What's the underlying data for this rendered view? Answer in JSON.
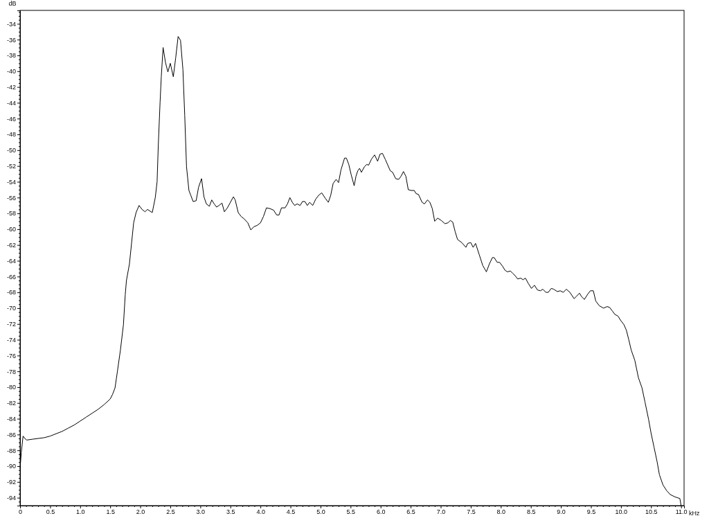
{
  "chart_data": {
    "type": "line",
    "xlabel": "kHz",
    "ylabel": "dB",
    "color": "#000000",
    "xlim": [
      0,
      11.05
    ],
    "ylim": [
      -95,
      -32.3
    ],
    "xticks": [
      0,
      {
        "value": 0.1,
        "label": null
      },
      {
        "value": 0.2,
        "label": null
      },
      {
        "value": 0.3,
        "label": null
      },
      {
        "value": 0.4,
        "label": null
      },
      0.5,
      {
        "value": 0.6,
        "label": null
      },
      {
        "value": 0.7,
        "label": null
      },
      {
        "value": 0.8,
        "label": null
      },
      {
        "value": 0.9,
        "label": null
      },
      {
        "value": 1,
        "label": "1.0"
      },
      {
        "value": 1.1,
        "label": null
      },
      {
        "value": 1.2,
        "label": null
      },
      {
        "value": 1.3,
        "label": null
      },
      {
        "value": 1.4,
        "label": null
      },
      1.5,
      {
        "value": 1.6,
        "label": null
      },
      {
        "value": 1.7,
        "label": null
      },
      {
        "value": 1.8,
        "label": null
      },
      {
        "value": 1.9,
        "label": null
      },
      {
        "value": 2,
        "label": "2.0"
      },
      {
        "value": 2.1,
        "label": null
      },
      {
        "value": 2.2,
        "label": null
      },
      {
        "value": 2.3,
        "label": null
      },
      {
        "value": 2.4,
        "label": null
      },
      2.5,
      {
        "value": 2.6,
        "label": null
      },
      {
        "value": 2.7,
        "label": null
      },
      {
        "value": 2.8,
        "label": null
      },
      {
        "value": 2.9,
        "label": null
      },
      {
        "value": 3,
        "label": "3.0"
      },
      {
        "value": 3.1,
        "label": null
      },
      {
        "value": 3.2,
        "label": null
      },
      {
        "value": 3.3,
        "label": null
      },
      {
        "value": 3.4,
        "label": null
      },
      3.5,
      {
        "value": 3.6,
        "label": null
      },
      {
        "value": 3.7,
        "label": null
      },
      {
        "value": 3.8,
        "label": null
      },
      {
        "value": 3.9,
        "label": null
      },
      {
        "value": 4,
        "label": "4.0"
      },
      {
        "value": 4.1,
        "label": null
      },
      {
        "value": 4.2,
        "label": null
      },
      {
        "value": 4.3,
        "label": null
      },
      {
        "value": 4.4,
        "label": null
      },
      4.5,
      {
        "value": 4.6,
        "label": null
      },
      {
        "value": 4.7,
        "label": null
      },
      {
        "value": 4.8,
        "label": null
      },
      {
        "value": 4.9,
        "label": null
      },
      {
        "value": 5,
        "label": "5.0"
      },
      {
        "value": 5.1,
        "label": null
      },
      {
        "value": 5.2,
        "label": null
      },
      {
        "value": 5.3,
        "label": null
      },
      {
        "value": 5.4,
        "label": null
      },
      5.5,
      {
        "value": 5.6,
        "label": null
      },
      {
        "value": 5.7,
        "label": null
      },
      {
        "value": 5.8,
        "label": null
      },
      {
        "value": 5.9,
        "label": null
      },
      {
        "value": 6,
        "label": "6.0"
      },
      {
        "value": 6.1,
        "label": null
      },
      {
        "value": 6.2,
        "label": null
      },
      {
        "value": 6.3,
        "label": null
      },
      {
        "value": 6.4,
        "label": null
      },
      6.5,
      {
        "value": 6.6,
        "label": null
      },
      {
        "value": 6.7,
        "label": null
      },
      {
        "value": 6.8,
        "label": null
      },
      {
        "value": 6.9,
        "label": null
      },
      {
        "value": 7,
        "label": "7.0"
      },
      {
        "value": 7.1,
        "label": null
      },
      {
        "value": 7.2,
        "label": null
      },
      {
        "value": 7.3,
        "label": null
      },
      {
        "value": 7.4,
        "label": null
      },
      7.5,
      {
        "value": 7.6,
        "label": null
      },
      {
        "value": 7.7,
        "label": null
      },
      {
        "value": 7.8,
        "label": null
      },
      {
        "value": 7.9,
        "label": null
      },
      {
        "value": 8,
        "label": "8.0"
      },
      {
        "value": 8.1,
        "label": null
      },
      {
        "value": 8.2,
        "label": null
      },
      {
        "value": 8.3,
        "label": null
      },
      {
        "value": 8.4,
        "label": null
      },
      8.5,
      {
        "value": 8.6,
        "label": null
      },
      {
        "value": 8.7,
        "label": null
      },
      {
        "value": 8.8,
        "label": null
      },
      {
        "value": 8.9,
        "label": null
      },
      {
        "value": 9,
        "label": "9.0"
      },
      {
        "value": 9.1,
        "label": null
      },
      {
        "value": 9.2,
        "label": null
      },
      {
        "value": 9.3,
        "label": null
      },
      {
        "value": 9.4,
        "label": null
      },
      9.5,
      {
        "value": 9.6,
        "label": null
      },
      {
        "value": 9.7,
        "label": null
      },
      {
        "value": 9.8,
        "label": null
      },
      {
        "value": 9.9,
        "label": null
      },
      {
        "value": 10,
        "label": "10.0"
      },
      {
        "value": 10.1,
        "label": null
      },
      {
        "value": 10.2,
        "label": null
      },
      {
        "value": 10.3,
        "label": null
      },
      {
        "value": 10.4,
        "label": null
      },
      10.5,
      {
        "value": 10.6,
        "label": null
      },
      {
        "value": 10.7,
        "label": null
      },
      {
        "value": 10.8,
        "label": null
      },
      {
        "value": 10.9,
        "label": null
      },
      {
        "value": 11,
        "label": "11.0"
      }
    ],
    "yticks": [
      {
        "value": -94.5,
        "label": null
      },
      -94,
      {
        "value": -93.5,
        "label": null
      },
      {
        "value": -93,
        "label": null
      },
      {
        "value": -92.5,
        "label": null
      },
      -92,
      {
        "value": -91.5,
        "label": null
      },
      {
        "value": -91,
        "label": null
      },
      {
        "value": -90.5,
        "label": null
      },
      -90,
      {
        "value": -89.5,
        "label": null
      },
      {
        "value": -89,
        "label": null
      },
      {
        "value": -88.5,
        "label": null
      },
      -88,
      {
        "value": -87.5,
        "label": null
      },
      {
        "value": -87,
        "label": null
      },
      {
        "value": -86.5,
        "label": null
      },
      -86,
      {
        "value": -85.5,
        "label": null
      },
      {
        "value": -85,
        "label": null
      },
      {
        "value": -84.5,
        "label": null
      },
      -84,
      {
        "value": -83.5,
        "label": null
      },
      {
        "value": -83,
        "label": null
      },
      {
        "value": -82.5,
        "label": null
      },
      -82,
      {
        "value": -81.5,
        "label": null
      },
      {
        "value": -81,
        "label": null
      },
      {
        "value": -80.5,
        "label": null
      },
      -80,
      {
        "value": -79.5,
        "label": null
      },
      {
        "value": -79,
        "label": null
      },
      {
        "value": -78.5,
        "label": null
      },
      -78,
      {
        "value": -77.5,
        "label": null
      },
      {
        "value": -77,
        "label": null
      },
      {
        "value": -76.5,
        "label": null
      },
      -76,
      {
        "value": -75.5,
        "label": null
      },
      {
        "value": -75,
        "label": null
      },
      {
        "value": -74.5,
        "label": null
      },
      -74,
      {
        "value": -73.5,
        "label": null
      },
      {
        "value": -73,
        "label": null
      },
      {
        "value": -72.5,
        "label": null
      },
      -72,
      {
        "value": -71.5,
        "label": null
      },
      {
        "value": -71,
        "label": null
      },
      {
        "value": -70.5,
        "label": null
      },
      -70,
      {
        "value": -69.5,
        "label": null
      },
      {
        "value": -69,
        "label": null
      },
      {
        "value": -68.5,
        "label": null
      },
      -68,
      {
        "value": -67.5,
        "label": null
      },
      {
        "value": -67,
        "label": null
      },
      {
        "value": -66.5,
        "label": null
      },
      -66,
      {
        "value": -65.5,
        "label": null
      },
      {
        "value": -65,
        "label": null
      },
      {
        "value": -64.5,
        "label": null
      },
      -64,
      {
        "value": -63.5,
        "label": null
      },
      {
        "value": -63,
        "label": null
      },
      {
        "value": -62.5,
        "label": null
      },
      -62,
      {
        "value": -61.5,
        "label": null
      },
      {
        "value": -61,
        "label": null
      },
      {
        "value": -60.5,
        "label": null
      },
      -60,
      {
        "value": -59.5,
        "label": null
      },
      {
        "value": -59,
        "label": null
      },
      {
        "value": -58.5,
        "label": null
      },
      -58,
      {
        "value": -57.5,
        "label": null
      },
      {
        "value": -57,
        "label": null
      },
      {
        "value": -56.5,
        "label": null
      },
      -56,
      {
        "value": -55.5,
        "label": null
      },
      {
        "value": -55,
        "label": null
      },
      {
        "value": -54.5,
        "label": null
      },
      -54,
      {
        "value": -53.5,
        "label": null
      },
      {
        "value": -53,
        "label": null
      },
      {
        "value": -52.5,
        "label": null
      },
      -52,
      {
        "value": -51.5,
        "label": null
      },
      {
        "value": -51,
        "label": null
      },
      {
        "value": -50.5,
        "label": null
      },
      -50,
      {
        "value": -49.5,
        "label": null
      },
      {
        "value": -49,
        "label": null
      },
      {
        "value": -48.5,
        "label": null
      },
      -48,
      {
        "value": -47.5,
        "label": null
      },
      {
        "value": -47,
        "label": null
      },
      {
        "value": -46.5,
        "label": null
      },
      -46,
      {
        "value": -45.5,
        "label": null
      },
      {
        "value": -45,
        "label": null
      },
      {
        "value": -44.5,
        "label": null
      },
      -44,
      {
        "value": -43.5,
        "label": null
      },
      {
        "value": -43,
        "label": null
      },
      {
        "value": -42.5,
        "label": null
      },
      -42,
      {
        "value": -41.5,
        "label": null
      },
      {
        "value": -41,
        "label": null
      },
      {
        "value": -40.5,
        "label": null
      },
      -40,
      {
        "value": -39.5,
        "label": null
      },
      {
        "value": -39,
        "label": null
      },
      {
        "value": -38.5,
        "label": null
      },
      -38,
      {
        "value": -37.5,
        "label": null
      },
      {
        "value": -37,
        "label": null
      },
      {
        "value": -36.5,
        "label": null
      },
      -36,
      {
        "value": -35.5,
        "label": null
      },
      {
        "value": -35,
        "label": null
      },
      {
        "value": -34.5,
        "label": null
      },
      -34,
      {
        "value": -33.5,
        "label": null
      },
      {
        "value": -33,
        "label": null
      },
      {
        "value": -32.5,
        "label": null
      }
    ],
    "x": [
      0,
      0.02,
      0.05,
      0.08,
      0.11,
      0.2,
      0.3,
      0.4,
      0.5,
      0.6,
      0.7,
      0.8,
      0.9,
      1.0,
      1.1,
      1.2,
      1.3,
      1.4,
      1.5,
      1.54,
      1.58,
      1.62,
      1.67,
      1.72,
      1.75,
      1.77,
      1.82,
      1.89,
      1.93,
      1.98,
      2.03,
      2.08,
      2.12,
      2.2,
      2.25,
      2.28,
      2.3,
      2.33,
      2.35,
      2.38,
      2.42,
      2.46,
      2.5,
      2.55,
      2.59,
      2.63,
      2.67,
      2.71,
      2.74,
      2.77,
      2.81,
      2.84,
      2.88,
      2.93,
      2.97,
      3.02,
      3.06,
      3.1,
      3.15,
      3.19,
      3.23,
      3.27,
      3.31,
      3.36,
      3.4,
      3.45,
      3.5,
      3.55,
      3.58,
      3.63,
      3.68,
      3.73,
      3.79,
      3.84,
      3.89,
      3.95,
      4.0,
      4.05,
      4.1,
      4.16,
      4.22,
      4.27,
      4.31,
      4.35,
      4.41,
      4.45,
      4.49,
      4.53,
      4.57,
      4.61,
      4.66,
      4.7,
      4.74,
      4.78,
      4.82,
      4.87,
      4.92,
      4.97,
      5.02,
      5.08,
      5.13,
      5.17,
      5.21,
      5.26,
      5.3,
      5.34,
      5.4,
      5.43,
      5.47,
      5.51,
      5.56,
      5.59,
      5.62,
      5.65,
      5.68,
      5.73,
      5.77,
      5.8,
      5.85,
      5.9,
      5.95,
      5.99,
      6.03,
      6.08,
      6.16,
      6.2,
      6.25,
      6.3,
      6.34,
      6.38,
      6.42,
      6.46,
      6.51,
      6.56,
      6.59,
      6.63,
      6.69,
      6.73,
      6.78,
      6.82,
      6.86,
      6.9,
      6.95,
      7.01,
      7.07,
      7.12,
      7.16,
      7.2,
      7.24,
      7.28,
      7.35,
      7.42,
      7.45,
      7.5,
      7.54,
      7.58,
      7.64,
      7.7,
      7.76,
      7.81,
      7.86,
      7.89,
      7.94,
      7.98,
      8.03,
      8.07,
      8.11,
      8.16,
      8.2,
      8.24,
      8.28,
      8.33,
      8.37,
      8.41,
      8.46,
      8.51,
      8.56,
      8.61,
      8.66,
      8.7,
      8.75,
      8.79,
      8.84,
      8.88,
      8.94,
      8.99,
      9.04,
      9.09,
      9.15,
      9.22,
      9.26,
      9.31,
      9.34,
      9.39,
      9.45,
      9.49,
      9.54,
      9.58,
      9.64,
      9.71,
      9.77,
      9.81,
      9.86,
      9.9,
      9.95,
      9.99,
      10.05,
      10.09,
      10.13,
      10.17,
      10.23,
      10.29,
      10.35,
      10.4,
      10.46,
      10.5,
      10.55,
      10.6,
      10.64,
      10.7,
      10.76,
      10.82,
      10.9,
      10.98,
      11.0
    ],
    "values": [
      -90.3,
      -88.3,
      -86.2,
      -86.5,
      -86.7,
      -86.6,
      -86.5,
      -86.4,
      -86.2,
      -85.9,
      -85.6,
      -85.2,
      -84.8,
      -84.3,
      -83.8,
      -83.3,
      -82.8,
      -82.2,
      -81.5,
      -80.9,
      -80.1,
      -78.0,
      -75.3,
      -72.1,
      -68.3,
      -66.5,
      -64.4,
      -59.2,
      -57.9,
      -57.0,
      -57.5,
      -57.8,
      -57.5,
      -57.9,
      -56.0,
      -54.0,
      -49.4,
      -43.9,
      -40.7,
      -37.0,
      -38.9,
      -40.1,
      -39.0,
      -40.7,
      -38.3,
      -35.6,
      -36.1,
      -39.8,
      -45.6,
      -52.1,
      -55.1,
      -55.7,
      -56.5,
      -56.4,
      -54.7,
      -53.6,
      -55.9,
      -56.8,
      -57.1,
      -56.3,
      -56.8,
      -57.2,
      -57.0,
      -56.7,
      -57.8,
      -57.3,
      -56.6,
      -55.9,
      -56.3,
      -57.9,
      -58.4,
      -58.7,
      -59.2,
      -60.1,
      -59.7,
      -59.5,
      -59.2,
      -58.4,
      -57.3,
      -57.4,
      -57.6,
      -58.2,
      -58.2,
      -57.3,
      -57.3,
      -56.8,
      -56.0,
      -56.6,
      -57.0,
      -56.8,
      -57.0,
      -56.5,
      -56.5,
      -57.0,
      -56.6,
      -57.0,
      -56.2,
      -55.7,
      -55.4,
      -56.1,
      -56.6,
      -55.7,
      -54.2,
      -53.7,
      -54.1,
      -52.5,
      -51.0,
      -51.0,
      -51.8,
      -53.1,
      -54.5,
      -53.3,
      -52.6,
      -52.3,
      -52.8,
      -52.1,
      -51.8,
      -51.9,
      -51.1,
      -50.6,
      -51.4,
      -50.5,
      -50.4,
      -51.2,
      -52.6,
      -52.8,
      -53.6,
      -53.7,
      -53.3,
      -52.7,
      -53.3,
      -55.0,
      -55.1,
      -55.1,
      -55.5,
      -55.6,
      -56.6,
      -56.8,
      -56.3,
      -56.6,
      -57.4,
      -59.0,
      -58.6,
      -58.9,
      -59.3,
      -59.2,
      -58.9,
      -59.1,
      -60.3,
      -61.3,
      -61.7,
      -62.3,
      -61.8,
      -61.7,
      -62.3,
      -61.8,
      -63.2,
      -64.6,
      -65.4,
      -64.4,
      -63.6,
      -63.6,
      -64.2,
      -64.2,
      -64.7,
      -65.2,
      -65.4,
      -65.3,
      -65.6,
      -65.9,
      -66.3,
      -66.2,
      -66.4,
      -66.2,
      -66.9,
      -67.5,
      -67.1,
      -67.7,
      -67.8,
      -67.6,
      -68.0,
      -68.0,
      -67.5,
      -67.6,
      -67.9,
      -67.8,
      -68.0,
      -67.6,
      -68.0,
      -68.8,
      -68.5,
      -68.1,
      -68.5,
      -68.9,
      -68.2,
      -67.8,
      -67.8,
      -69.1,
      -69.7,
      -70.0,
      -69.8,
      -69.9,
      -70.4,
      -70.8,
      -71.0,
      -71.5,
      -72.1,
      -72.8,
      -74.0,
      -75.3,
      -76.6,
      -78.8,
      -80.1,
      -81.9,
      -84.1,
      -85.8,
      -87.6,
      -89.4,
      -91.1,
      -92.4,
      -93.1,
      -93.6,
      -93.9,
      -94.1,
      -95.0
    ]
  }
}
